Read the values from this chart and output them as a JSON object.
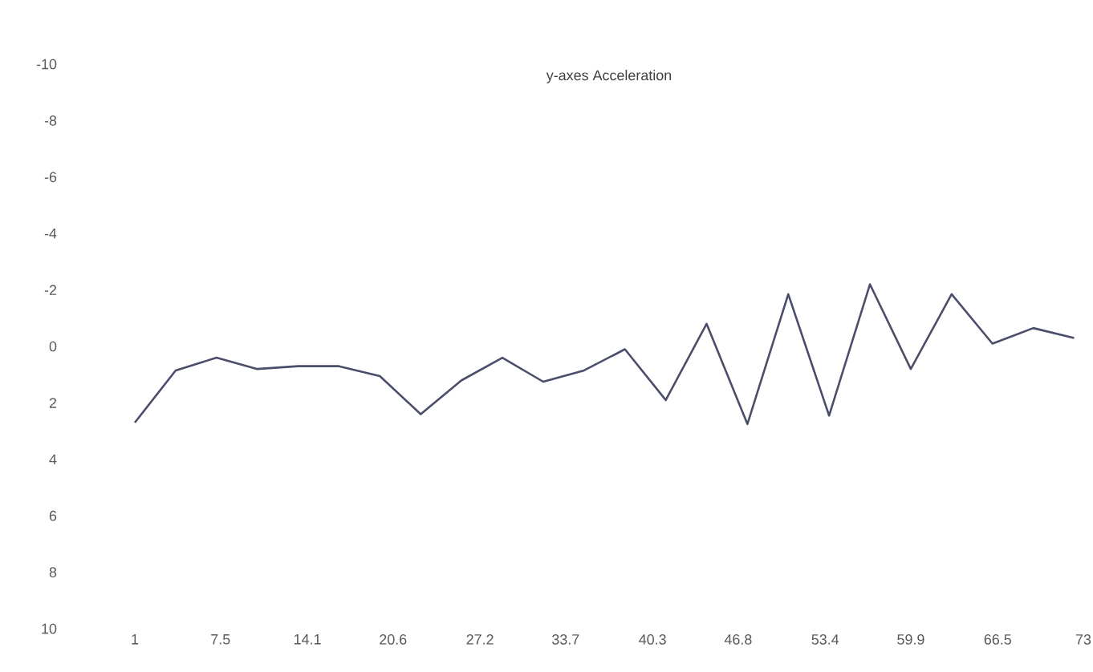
{
  "chart_data": {
    "type": "line",
    "title": "y-axes Acceleration",
    "x": [
      1,
      4.1,
      7.2,
      10.3,
      13.4,
      16.5,
      19.6,
      22.7,
      25.8,
      28.9,
      32,
      35.1,
      38.2,
      41.3,
      44.4,
      47.5,
      50.6,
      53.7,
      56.8,
      59.9,
      63,
      66.1,
      69.2,
      72.3
    ],
    "series": [
      {
        "color": "#4a4e6a",
        "values": [
          2.7,
          0.85,
          0.4,
          0.8,
          0.7,
          0.7,
          1.05,
          2.4,
          1.2,
          0.4,
          1.25,
          0.85,
          0.1,
          1.9,
          -0.8,
          2.75,
          -1.85,
          2.45,
          -2.2,
          0.8,
          -1.85,
          -0.1,
          -0.65,
          -0.3
        ]
      }
    ],
    "xlim": [
      1,
      73
    ],
    "ylim": [
      10,
      -10
    ],
    "xticks": [
      1,
      7.5,
      14.1,
      20.6,
      27.2,
      33.7,
      40.3,
      46.8,
      53.4,
      59.9,
      66.5,
      73
    ],
    "yticks": [
      -10,
      -8,
      -6,
      -4,
      -2,
      0,
      2,
      4,
      6,
      8,
      10
    ],
    "marker": "none",
    "line_style": "solid"
  }
}
